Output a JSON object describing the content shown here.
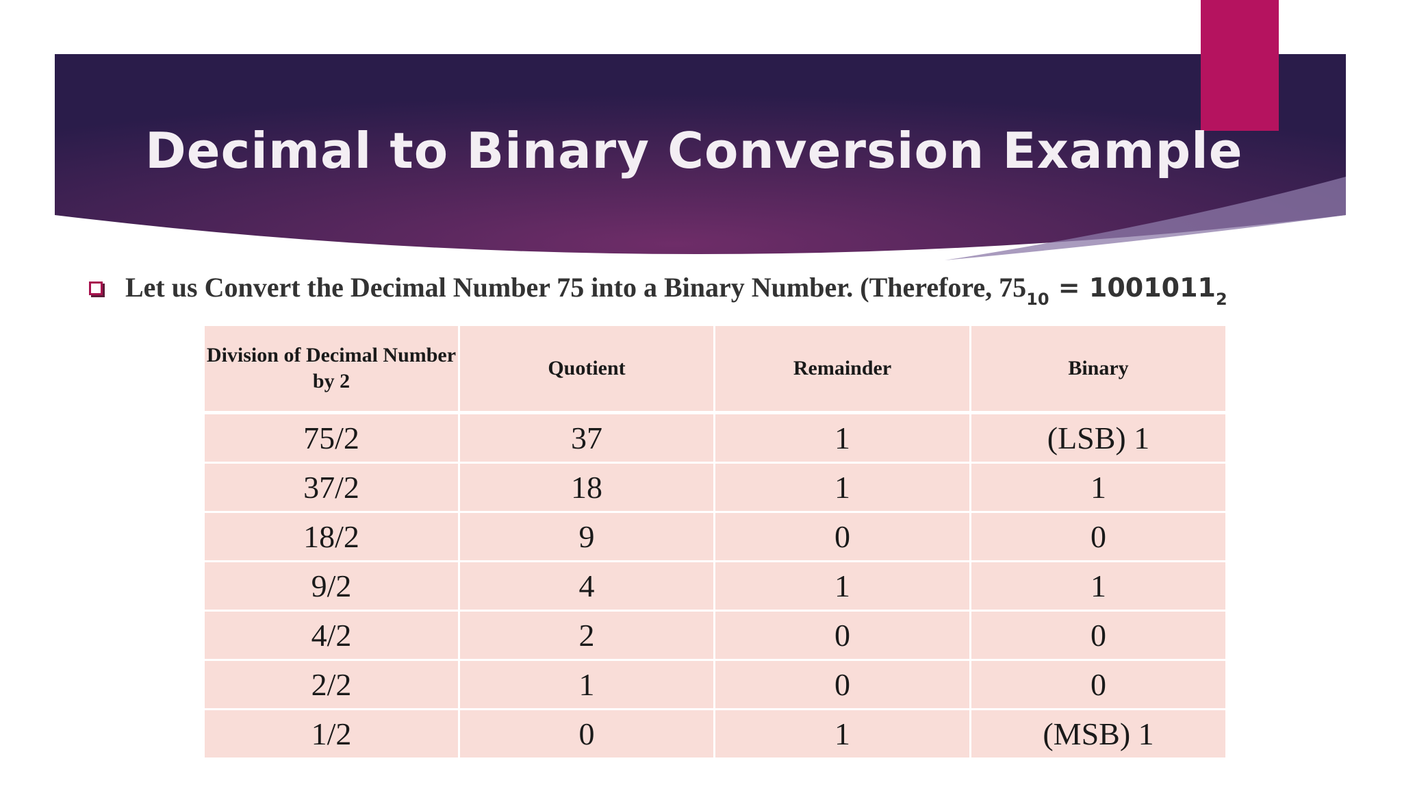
{
  "slide": {
    "title": "Decimal to Binary Conversion Example",
    "bullet": {
      "text": "Let us Convert the Decimal Number 75 into a Binary Number. (Therefore, 75",
      "decimal_subscript": "10",
      "equals_binary": " = 1001011",
      "binary_subscript": "2"
    }
  },
  "colors": {
    "banner_dark": "#2a1c4a",
    "banner_mid": "#6a2c66",
    "accent": "#b5135f",
    "table_cell": "#f9ddd8"
  },
  "table": {
    "headers": [
      "Division of Decimal Number by 2",
      "Quotient",
      "Remainder",
      "Binary"
    ],
    "rows": [
      [
        "75/2",
        "37",
        "1",
        "(LSB) 1"
      ],
      [
        "37/2",
        "18",
        "1",
        "1"
      ],
      [
        "18/2",
        "9",
        "0",
        "0"
      ],
      [
        "9/2",
        "4",
        "1",
        "1"
      ],
      [
        "4/2",
        "2",
        "0",
        "0"
      ],
      [
        "2/2",
        "1",
        "0",
        "0"
      ],
      [
        "1/2",
        "0",
        "1",
        "(MSB) 1"
      ]
    ]
  }
}
